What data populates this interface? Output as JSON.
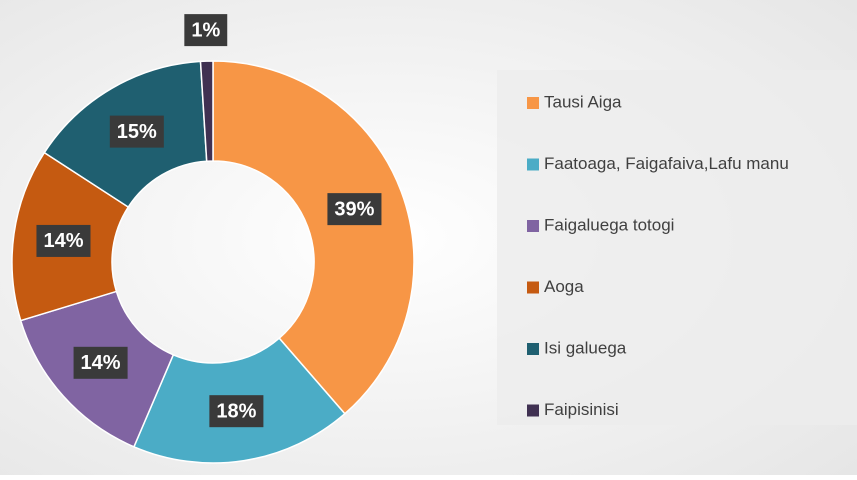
{
  "chart_data": {
    "type": "donut",
    "categories": [
      "Tausi Aiga",
      "Faatoaga, Faigafaiva,Lafu manu",
      "Faigaluega totogi",
      "Aoga",
      "Isi galuega",
      "Faipisinisi"
    ],
    "values": [
      39,
      18,
      14,
      14,
      15,
      1
    ],
    "value_labels": [
      "39%",
      "18%",
      "14%",
      "14%",
      "15%",
      "1%"
    ],
    "colors": [
      "#f79646",
      "#4bacc6",
      "#8064a2",
      "#c55a11",
      "#1f5f70",
      "#403152"
    ],
    "legend": "right"
  }
}
